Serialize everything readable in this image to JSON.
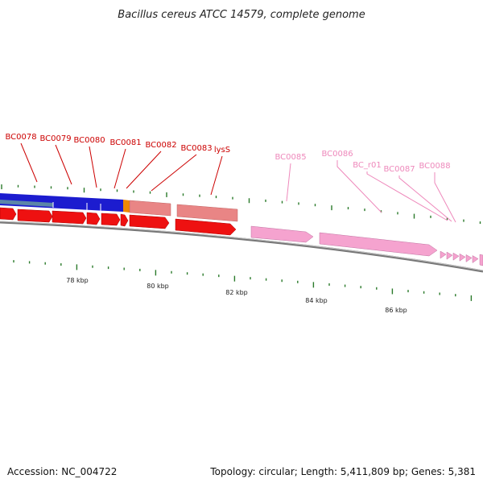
{
  "title": "Bacillus cereus ATCC 14579, complete genome",
  "accession": "Accession: NC_004722",
  "summary": "Topology: circular; Length: 5,411,809 bp; Genes: 5,381",
  "colors": {
    "red_cds": "#ee1111",
    "dark_red_label": "#cc0000",
    "pink_cds": "#f5a3cf",
    "pink_label": "#ee88bb",
    "salmon": "#e98585",
    "blue": "#1c1ccf",
    "steel_blue": "#5b86a8",
    "orange": "#ee8800",
    "tick_green": "#2a7a2a",
    "backbone": "#888888"
  },
  "scale_labels": [
    "78 kbp",
    "80 kbp",
    "82 kbp",
    "84 kbp",
    "86 kbp"
  ],
  "gene_labels": [
    {
      "name": "BC0078",
      "group": "red"
    },
    {
      "name": "BC0079",
      "group": "red"
    },
    {
      "name": "BC0080",
      "group": "red"
    },
    {
      "name": "BC0081",
      "group": "red"
    },
    {
      "name": "BC0082",
      "group": "red"
    },
    {
      "name": "BC0083",
      "group": "red"
    },
    {
      "name": "lysS",
      "group": "red"
    },
    {
      "name": "BC0085",
      "group": "pink"
    },
    {
      "name": "BC0086",
      "group": "pink"
    },
    {
      "name": "BC_r01",
      "group": "pink"
    },
    {
      "name": "BC0087",
      "group": "pink"
    },
    {
      "name": "BC0088",
      "group": "pink"
    }
  ]
}
